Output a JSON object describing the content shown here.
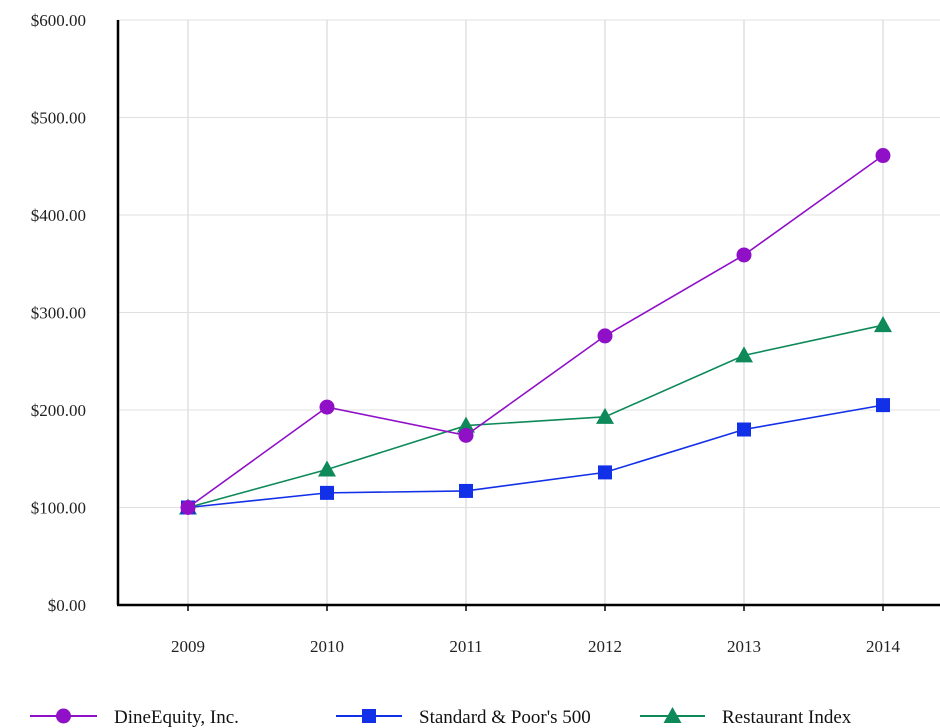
{
  "chart_data": {
    "type": "line",
    "x": [
      "2009",
      "2010",
      "2011",
      "2012",
      "2013",
      "2014"
    ],
    "ylim": [
      0,
      600
    ],
    "y_ticks": [
      {
        "value": 0,
        "label": "$0.00"
      },
      {
        "value": 100,
        "label": "$100.00"
      },
      {
        "value": 200,
        "label": "$200.00"
      },
      {
        "value": 300,
        "label": "$300.00"
      },
      {
        "value": 400,
        "label": "$400.00"
      },
      {
        "value": 500,
        "label": "$500.00"
      },
      {
        "value": 600,
        "label": "$600.00"
      }
    ],
    "grid": true,
    "legend_placement": "bottom",
    "series": [
      {
        "name": "DineEquity, Inc.",
        "values": [
          100,
          203,
          174,
          276,
          359,
          461
        ],
        "color": "#9010c8",
        "marker": "circle"
      },
      {
        "name": "Standard & Poor's 500",
        "values": [
          100,
          115,
          117,
          136,
          180,
          205
        ],
        "color": "#1230e8",
        "marker": "square"
      },
      {
        "name": "Restaurant Index",
        "values": [
          100,
          139,
          184,
          193,
          256,
          287
        ],
        "color": "#0e8a5a",
        "marker": "triangle"
      }
    ]
  }
}
